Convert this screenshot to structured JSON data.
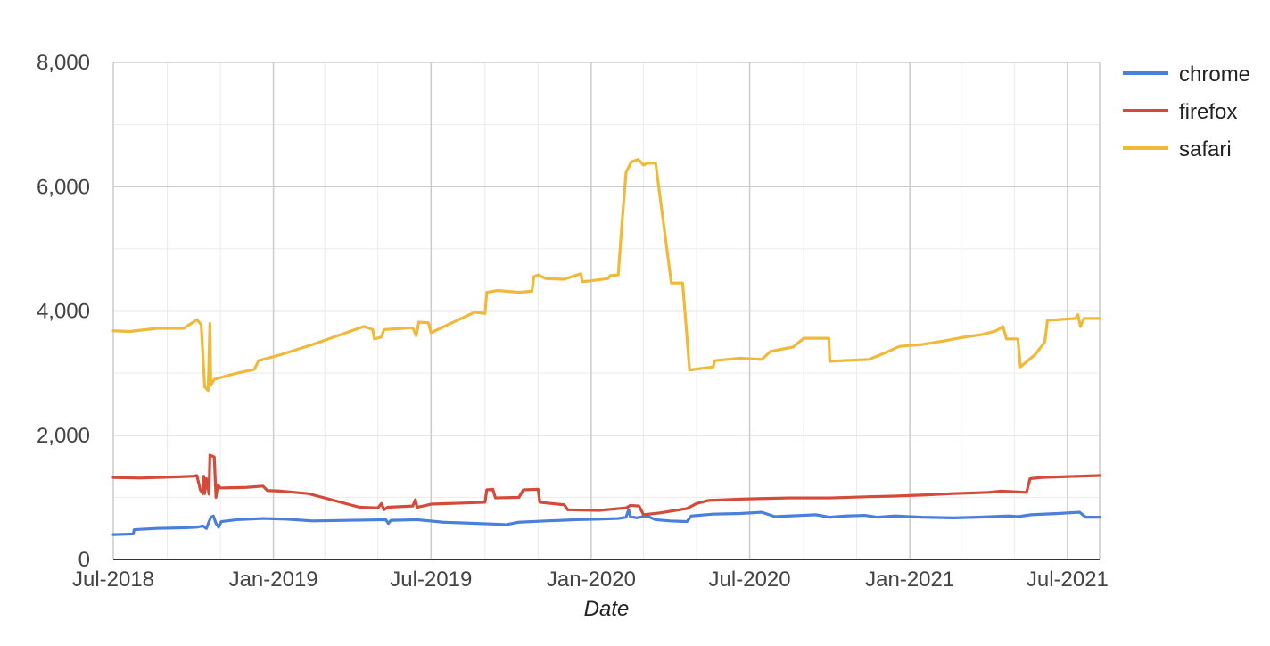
{
  "chart_data": {
    "type": "line",
    "title": "",
    "xlabel": "Date",
    "ylabel": "",
    "x_range": [
      "2018-07-01",
      "2021-08-07"
    ],
    "ylim": [
      0,
      8000
    ],
    "y_ticks": [
      0,
      2000,
      4000,
      6000,
      8000
    ],
    "y_tick_labels": [
      "0",
      "2,000",
      "4,000",
      "6,000",
      "8,000"
    ],
    "y_minor_ticks": [
      1000,
      3000,
      5000,
      7000
    ],
    "x_ticks": [
      "2018-07-01",
      "2019-01-01",
      "2019-07-01",
      "2020-01-01",
      "2020-07-01",
      "2021-01-01",
      "2021-07-01"
    ],
    "x_tick_labels": [
      "Jul-2018",
      "Jan-2019",
      "Jul-2019",
      "Jan-2020",
      "Jul-2020",
      "Jan-2021",
      "Jul-2021"
    ],
    "x_minor_ticks": [
      "2018-09-01",
      "2018-11-01",
      "2019-03-01",
      "2019-05-01",
      "2019-09-01",
      "2019-11-01",
      "2020-03-01",
      "2020-05-01",
      "2020-09-01",
      "2020-11-01",
      "2021-03-01",
      "2021-05-01"
    ],
    "grid": true,
    "legend_position": "right",
    "series": [
      {
        "name": "chrome",
        "color": "#4a7fdc",
        "points": [
          [
            "2018-07-01",
            400
          ],
          [
            "2018-07-24",
            410
          ],
          [
            "2018-07-25",
            480
          ],
          [
            "2018-08-20",
            500
          ],
          [
            "2018-09-20",
            510
          ],
          [
            "2018-10-05",
            520
          ],
          [
            "2018-10-12",
            540
          ],
          [
            "2018-10-16",
            500
          ],
          [
            "2018-10-21",
            680
          ],
          [
            "2018-10-24",
            700
          ],
          [
            "2018-10-27",
            580
          ],
          [
            "2018-10-30",
            520
          ],
          [
            "2018-11-02",
            610
          ],
          [
            "2018-11-20",
            640
          ],
          [
            "2018-12-20",
            660
          ],
          [
            "2019-01-15",
            650
          ],
          [
            "2019-02-15",
            620
          ],
          [
            "2019-05-10",
            640
          ],
          [
            "2019-05-13",
            580
          ],
          [
            "2019-05-16",
            630
          ],
          [
            "2019-06-15",
            640
          ],
          [
            "2019-07-15",
            600
          ],
          [
            "2019-09-10",
            570
          ],
          [
            "2019-09-25",
            560
          ],
          [
            "2019-10-10",
            600
          ],
          [
            "2019-11-10",
            620
          ],
          [
            "2019-12-15",
            640
          ],
          [
            "2020-01-10",
            650
          ],
          [
            "2020-02-01",
            660
          ],
          [
            "2020-02-10",
            680
          ],
          [
            "2020-02-13",
            800
          ],
          [
            "2020-02-15",
            690
          ],
          [
            "2020-02-22",
            670
          ],
          [
            "2020-03-05",
            700
          ],
          [
            "2020-03-15",
            640
          ],
          [
            "2020-04-01",
            620
          ],
          [
            "2020-04-20",
            610
          ],
          [
            "2020-04-25",
            700
          ],
          [
            "2020-05-20",
            730
          ],
          [
            "2020-06-20",
            740
          ],
          [
            "2020-07-15",
            760
          ],
          [
            "2020-07-30",
            690
          ],
          [
            "2020-08-15",
            700
          ],
          [
            "2020-09-15",
            720
          ],
          [
            "2020-10-01",
            680
          ],
          [
            "2020-10-20",
            700
          ],
          [
            "2020-11-10",
            710
          ],
          [
            "2020-11-25",
            680
          ],
          [
            "2020-12-15",
            700
          ],
          [
            "2021-01-15",
            680
          ],
          [
            "2021-02-20",
            670
          ],
          [
            "2021-03-20",
            680
          ],
          [
            "2021-04-25",
            700
          ],
          [
            "2021-05-05",
            690
          ],
          [
            "2021-05-20",
            720
          ],
          [
            "2021-06-20",
            740
          ],
          [
            "2021-07-15",
            760
          ],
          [
            "2021-07-22",
            680
          ],
          [
            "2021-08-07",
            680
          ]
        ]
      },
      {
        "name": "firefox",
        "color": "#d44b3a",
        "points": [
          [
            "2018-07-01",
            1320
          ],
          [
            "2018-08-01",
            1310
          ],
          [
            "2018-08-20",
            1320
          ],
          [
            "2018-09-15",
            1330
          ],
          [
            "2018-10-01",
            1340
          ],
          [
            "2018-10-05",
            1350
          ],
          [
            "2018-10-09",
            1120
          ],
          [
            "2018-10-12",
            1060
          ],
          [
            "2018-10-13",
            1340
          ],
          [
            "2018-10-14",
            1060
          ],
          [
            "2018-10-16",
            1300
          ],
          [
            "2018-10-19",
            1050
          ],
          [
            "2018-10-20",
            1680
          ],
          [
            "2018-10-25",
            1650
          ],
          [
            "2018-10-27",
            1000
          ],
          [
            "2018-10-29",
            1200
          ],
          [
            "2018-11-01",
            1150
          ],
          [
            "2018-12-01",
            1160
          ],
          [
            "2018-12-20",
            1180
          ],
          [
            "2018-12-25",
            1110
          ],
          [
            "2019-01-10",
            1100
          ],
          [
            "2019-02-10",
            1060
          ],
          [
            "2019-04-10",
            840
          ],
          [
            "2019-05-01",
            830
          ],
          [
            "2019-05-05",
            900
          ],
          [
            "2019-05-08",
            800
          ],
          [
            "2019-05-12",
            840
          ],
          [
            "2019-06-10",
            860
          ],
          [
            "2019-06-13",
            960
          ],
          [
            "2019-06-15",
            840
          ],
          [
            "2019-06-25",
            870
          ],
          [
            "2019-07-01",
            890
          ],
          [
            "2019-09-01",
            920
          ],
          [
            "2019-09-03",
            1120
          ],
          [
            "2019-09-10",
            1130
          ],
          [
            "2019-09-13",
            990
          ],
          [
            "2019-10-10",
            1000
          ],
          [
            "2019-10-15",
            1120
          ],
          [
            "2019-11-01",
            1130
          ],
          [
            "2019-11-03",
            920
          ],
          [
            "2019-12-01",
            880
          ],
          [
            "2019-12-05",
            800
          ],
          [
            "2020-01-10",
            790
          ],
          [
            "2020-02-10",
            830
          ],
          [
            "2020-02-15",
            870
          ],
          [
            "2020-02-25",
            860
          ],
          [
            "2020-03-01",
            720
          ],
          [
            "2020-03-20",
            750
          ],
          [
            "2020-04-20",
            820
          ],
          [
            "2020-05-01",
            900
          ],
          [
            "2020-05-15",
            950
          ],
          [
            "2020-06-20",
            970
          ],
          [
            "2020-07-15",
            980
          ],
          [
            "2020-08-15",
            990
          ],
          [
            "2020-10-01",
            990
          ],
          [
            "2020-11-15",
            1010
          ],
          [
            "2020-12-15",
            1020
          ],
          [
            "2021-01-20",
            1040
          ],
          [
            "2021-02-20",
            1060
          ],
          [
            "2021-04-01",
            1080
          ],
          [
            "2021-04-15",
            1100
          ],
          [
            "2021-05-15",
            1080
          ],
          [
            "2021-05-19",
            1300
          ],
          [
            "2021-06-01",
            1320
          ],
          [
            "2021-07-15",
            1340
          ],
          [
            "2021-08-07",
            1350
          ]
        ]
      },
      {
        "name": "safari",
        "color": "#f0b93a",
        "points": [
          [
            "2018-07-01",
            3680
          ],
          [
            "2018-07-20",
            3670
          ],
          [
            "2018-08-20",
            3720
          ],
          [
            "2018-09-20",
            3720
          ],
          [
            "2018-10-05",
            3860
          ],
          [
            "2018-10-10",
            3780
          ],
          [
            "2018-10-14",
            2780
          ],
          [
            "2018-10-18",
            2720
          ],
          [
            "2018-10-20",
            3800
          ],
          [
            "2018-10-21",
            2800
          ],
          [
            "2018-10-25",
            2900
          ],
          [
            "2018-11-20",
            3000
          ],
          [
            "2018-12-10",
            3060
          ],
          [
            "2018-12-15",
            3200
          ],
          [
            "2019-01-10",
            3300
          ],
          [
            "2019-02-15",
            3460
          ],
          [
            "2019-04-15",
            3750
          ],
          [
            "2019-04-25",
            3700
          ],
          [
            "2019-04-27",
            3550
          ],
          [
            "2019-05-05",
            3580
          ],
          [
            "2019-05-08",
            3700
          ],
          [
            "2019-06-10",
            3730
          ],
          [
            "2019-06-14",
            3600
          ],
          [
            "2019-06-17",
            3820
          ],
          [
            "2019-06-28",
            3810
          ],
          [
            "2019-07-01",
            3650
          ],
          [
            "2019-08-20",
            3980
          ],
          [
            "2019-09-01",
            3960
          ],
          [
            "2019-09-03",
            4300
          ],
          [
            "2019-09-15",
            4330
          ],
          [
            "2019-10-10",
            4300
          ],
          [
            "2019-10-25",
            4320
          ],
          [
            "2019-10-27",
            4550
          ],
          [
            "2019-11-01",
            4580
          ],
          [
            "2019-11-10",
            4520
          ],
          [
            "2019-12-01",
            4510
          ],
          [
            "2019-12-20",
            4600
          ],
          [
            "2019-12-22",
            4470
          ],
          [
            "2020-01-20",
            4520
          ],
          [
            "2020-01-23",
            4570
          ],
          [
            "2020-02-01",
            4580
          ],
          [
            "2020-02-05",
            5350
          ],
          [
            "2020-02-10",
            6230
          ],
          [
            "2020-02-16",
            6400
          ],
          [
            "2020-02-24",
            6440
          ],
          [
            "2020-03-01",
            6350
          ],
          [
            "2020-03-06",
            6380
          ],
          [
            "2020-03-15",
            6380
          ],
          [
            "2020-04-02",
            4450
          ],
          [
            "2020-04-15",
            4450
          ],
          [
            "2020-04-23",
            3050
          ],
          [
            "2020-05-20",
            3100
          ],
          [
            "2020-05-22",
            3200
          ],
          [
            "2020-06-20",
            3240
          ],
          [
            "2020-07-15",
            3220
          ],
          [
            "2020-07-25",
            3350
          ],
          [
            "2020-08-20",
            3420
          ],
          [
            "2020-09-01",
            3560
          ],
          [
            "2020-09-30",
            3560
          ],
          [
            "2020-10-01",
            3190
          ],
          [
            "2020-11-15",
            3220
          ],
          [
            "2020-12-01",
            3310
          ],
          [
            "2020-12-20",
            3430
          ],
          [
            "2021-01-15",
            3460
          ],
          [
            "2021-02-10",
            3520
          ],
          [
            "2021-03-05",
            3580
          ],
          [
            "2021-03-25",
            3620
          ],
          [
            "2021-04-10",
            3680
          ],
          [
            "2021-04-18",
            3750
          ],
          [
            "2021-04-22",
            3550
          ],
          [
            "2021-05-05",
            3550
          ],
          [
            "2021-05-08",
            3100
          ],
          [
            "2021-05-25",
            3300
          ],
          [
            "2021-06-05",
            3500
          ],
          [
            "2021-06-08",
            3850
          ],
          [
            "2021-06-20",
            3860
          ],
          [
            "2021-07-10",
            3880
          ],
          [
            "2021-07-13",
            3940
          ],
          [
            "2021-07-16",
            3750
          ],
          [
            "2021-07-20",
            3880
          ],
          [
            "2021-08-07",
            3880
          ]
        ]
      }
    ]
  }
}
